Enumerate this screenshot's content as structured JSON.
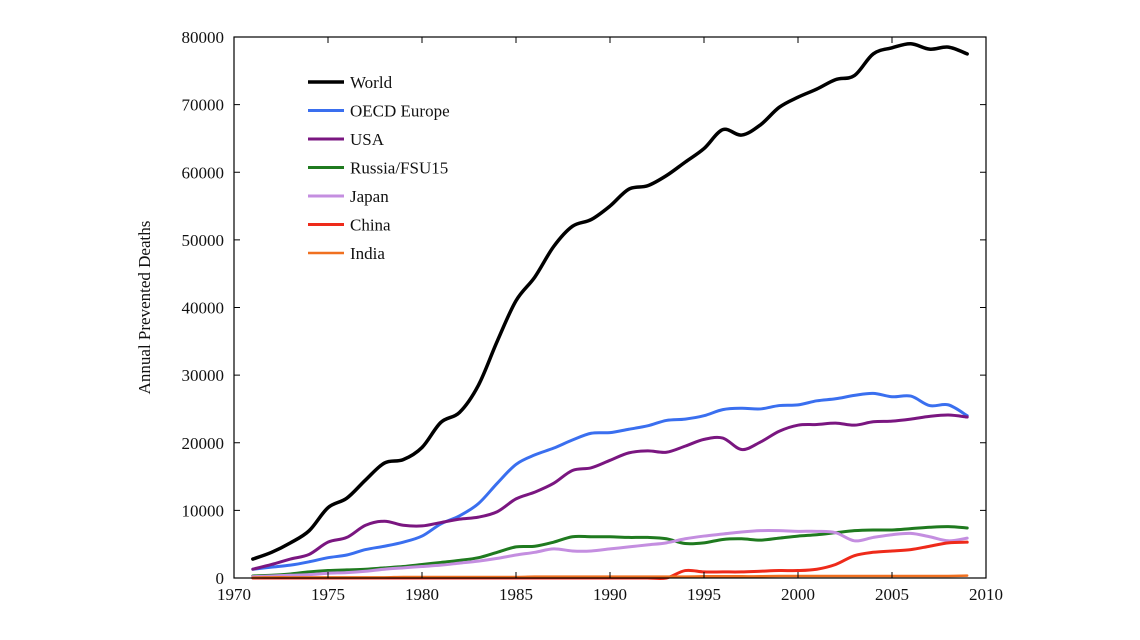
{
  "chart_data": {
    "type": "line",
    "title": "",
    "xlabel": "",
    "ylabel": "Annual Prevented Deaths",
    "xlim": [
      1970,
      2010
    ],
    "ylim": [
      0,
      80000
    ],
    "x_ticks": [
      1970,
      1975,
      1980,
      1985,
      1990,
      1995,
      2000,
      2005,
      2010
    ],
    "y_ticks": [
      0,
      10000,
      20000,
      30000,
      40000,
      50000,
      60000,
      70000,
      80000
    ],
    "grid": false,
    "legend_position": "top-left",
    "x": [
      1971,
      1972,
      1973,
      1974,
      1975,
      1976,
      1977,
      1978,
      1979,
      1980,
      1981,
      1982,
      1983,
      1984,
      1985,
      1986,
      1987,
      1988,
      1989,
      1990,
      1991,
      1992,
      1993,
      1994,
      1995,
      1996,
      1997,
      1998,
      1999,
      2000,
      2001,
      2002,
      2003,
      2004,
      2005,
      2006,
      2007,
      2008,
      2009
    ],
    "series": [
      {
        "name": "World",
        "color": "#000000",
        "width": 3.5,
        "values": [
          2800,
          3800,
          5200,
          7000,
          10400,
          11800,
          14500,
          17000,
          17500,
          19300,
          23000,
          24500,
          28500,
          35000,
          41000,
          44500,
          49000,
          52000,
          53000,
          55000,
          57500,
          58000,
          59500,
          61500,
          63500,
          66300,
          65500,
          67000,
          69600,
          71100,
          72300,
          73700,
          74300,
          77500,
          78400,
          79000,
          78200,
          78500,
          77500
        ]
      },
      {
        "name": "OECD Europe",
        "color": "#3a6fef",
        "width": 3,
        "values": [
          1300,
          1600,
          1900,
          2400,
          3000,
          3400,
          4200,
          4700,
          5300,
          6200,
          8000,
          9200,
          11000,
          14000,
          16800,
          18200,
          19200,
          20400,
          21400,
          21500,
          22000,
          22500,
          23300,
          23500,
          24000,
          24900,
          25100,
          25000,
          25500,
          25600,
          26200,
          26500,
          27000,
          27300,
          26800,
          26900,
          25500,
          25600,
          24000
        ]
      },
      {
        "name": "USA",
        "color": "#7a1680",
        "width": 3,
        "values": [
          1300,
          2000,
          2800,
          3500,
          5300,
          6000,
          7800,
          8400,
          7800,
          7700,
          8200,
          8700,
          9000,
          9800,
          11700,
          12700,
          14000,
          15900,
          16300,
          17400,
          18500,
          18800,
          18600,
          19500,
          20500,
          20700,
          19000,
          20100,
          21700,
          22600,
          22700,
          22900,
          22600,
          23100,
          23200,
          23500,
          23900,
          24100,
          23800
        ]
      },
      {
        "name": "Russia/FSU15",
        "color": "#1f7a1f",
        "width": 3,
        "values": [
          300,
          400,
          600,
          900,
          1100,
          1200,
          1300,
          1500,
          1700,
          2000,
          2300,
          2600,
          3000,
          3800,
          4600,
          4700,
          5300,
          6100,
          6100,
          6100,
          6000,
          6000,
          5800,
          5100,
          5200,
          5700,
          5800,
          5600,
          5900,
          6200,
          6400,
          6700,
          7000,
          7100,
          7100,
          7300,
          7500,
          7600,
          7400
        ]
      },
      {
        "name": "Japan",
        "color": "#c48ee0",
        "width": 3,
        "values": [
          200,
          300,
          400,
          500,
          700,
          800,
          1000,
          1300,
          1500,
          1700,
          1900,
          2200,
          2500,
          2900,
          3400,
          3800,
          4300,
          4000,
          4000,
          4300,
          4600,
          4900,
          5200,
          5800,
          6200,
          6500,
          6800,
          7000,
          7000,
          6900,
          6900,
          6700,
          5500,
          6000,
          6400,
          6600,
          6100,
          5500,
          5900
        ]
      },
      {
        "name": "China",
        "color": "#ee2a1a",
        "width": 3,
        "values": [
          0,
          0,
          0,
          0,
          0,
          0,
          0,
          0,
          0,
          0,
          0,
          0,
          0,
          0,
          0,
          0,
          0,
          0,
          0,
          0,
          0,
          0,
          0,
          1100,
          900,
          900,
          900,
          1000,
          1100,
          1100,
          1300,
          2000,
          3300,
          3800,
          4000,
          4200,
          4700,
          5200,
          5300
        ]
      },
      {
        "name": "India",
        "color": "#f07020",
        "width": 2.5,
        "values": [
          50,
          100,
          100,
          100,
          100,
          100,
          100,
          100,
          150,
          150,
          150,
          150,
          150,
          150,
          150,
          200,
          200,
          200,
          200,
          200,
          200,
          200,
          200,
          200,
          250,
          250,
          250,
          250,
          300,
          300,
          300,
          300,
          300,
          300,
          300,
          300,
          300,
          300,
          350
        ]
      }
    ]
  }
}
